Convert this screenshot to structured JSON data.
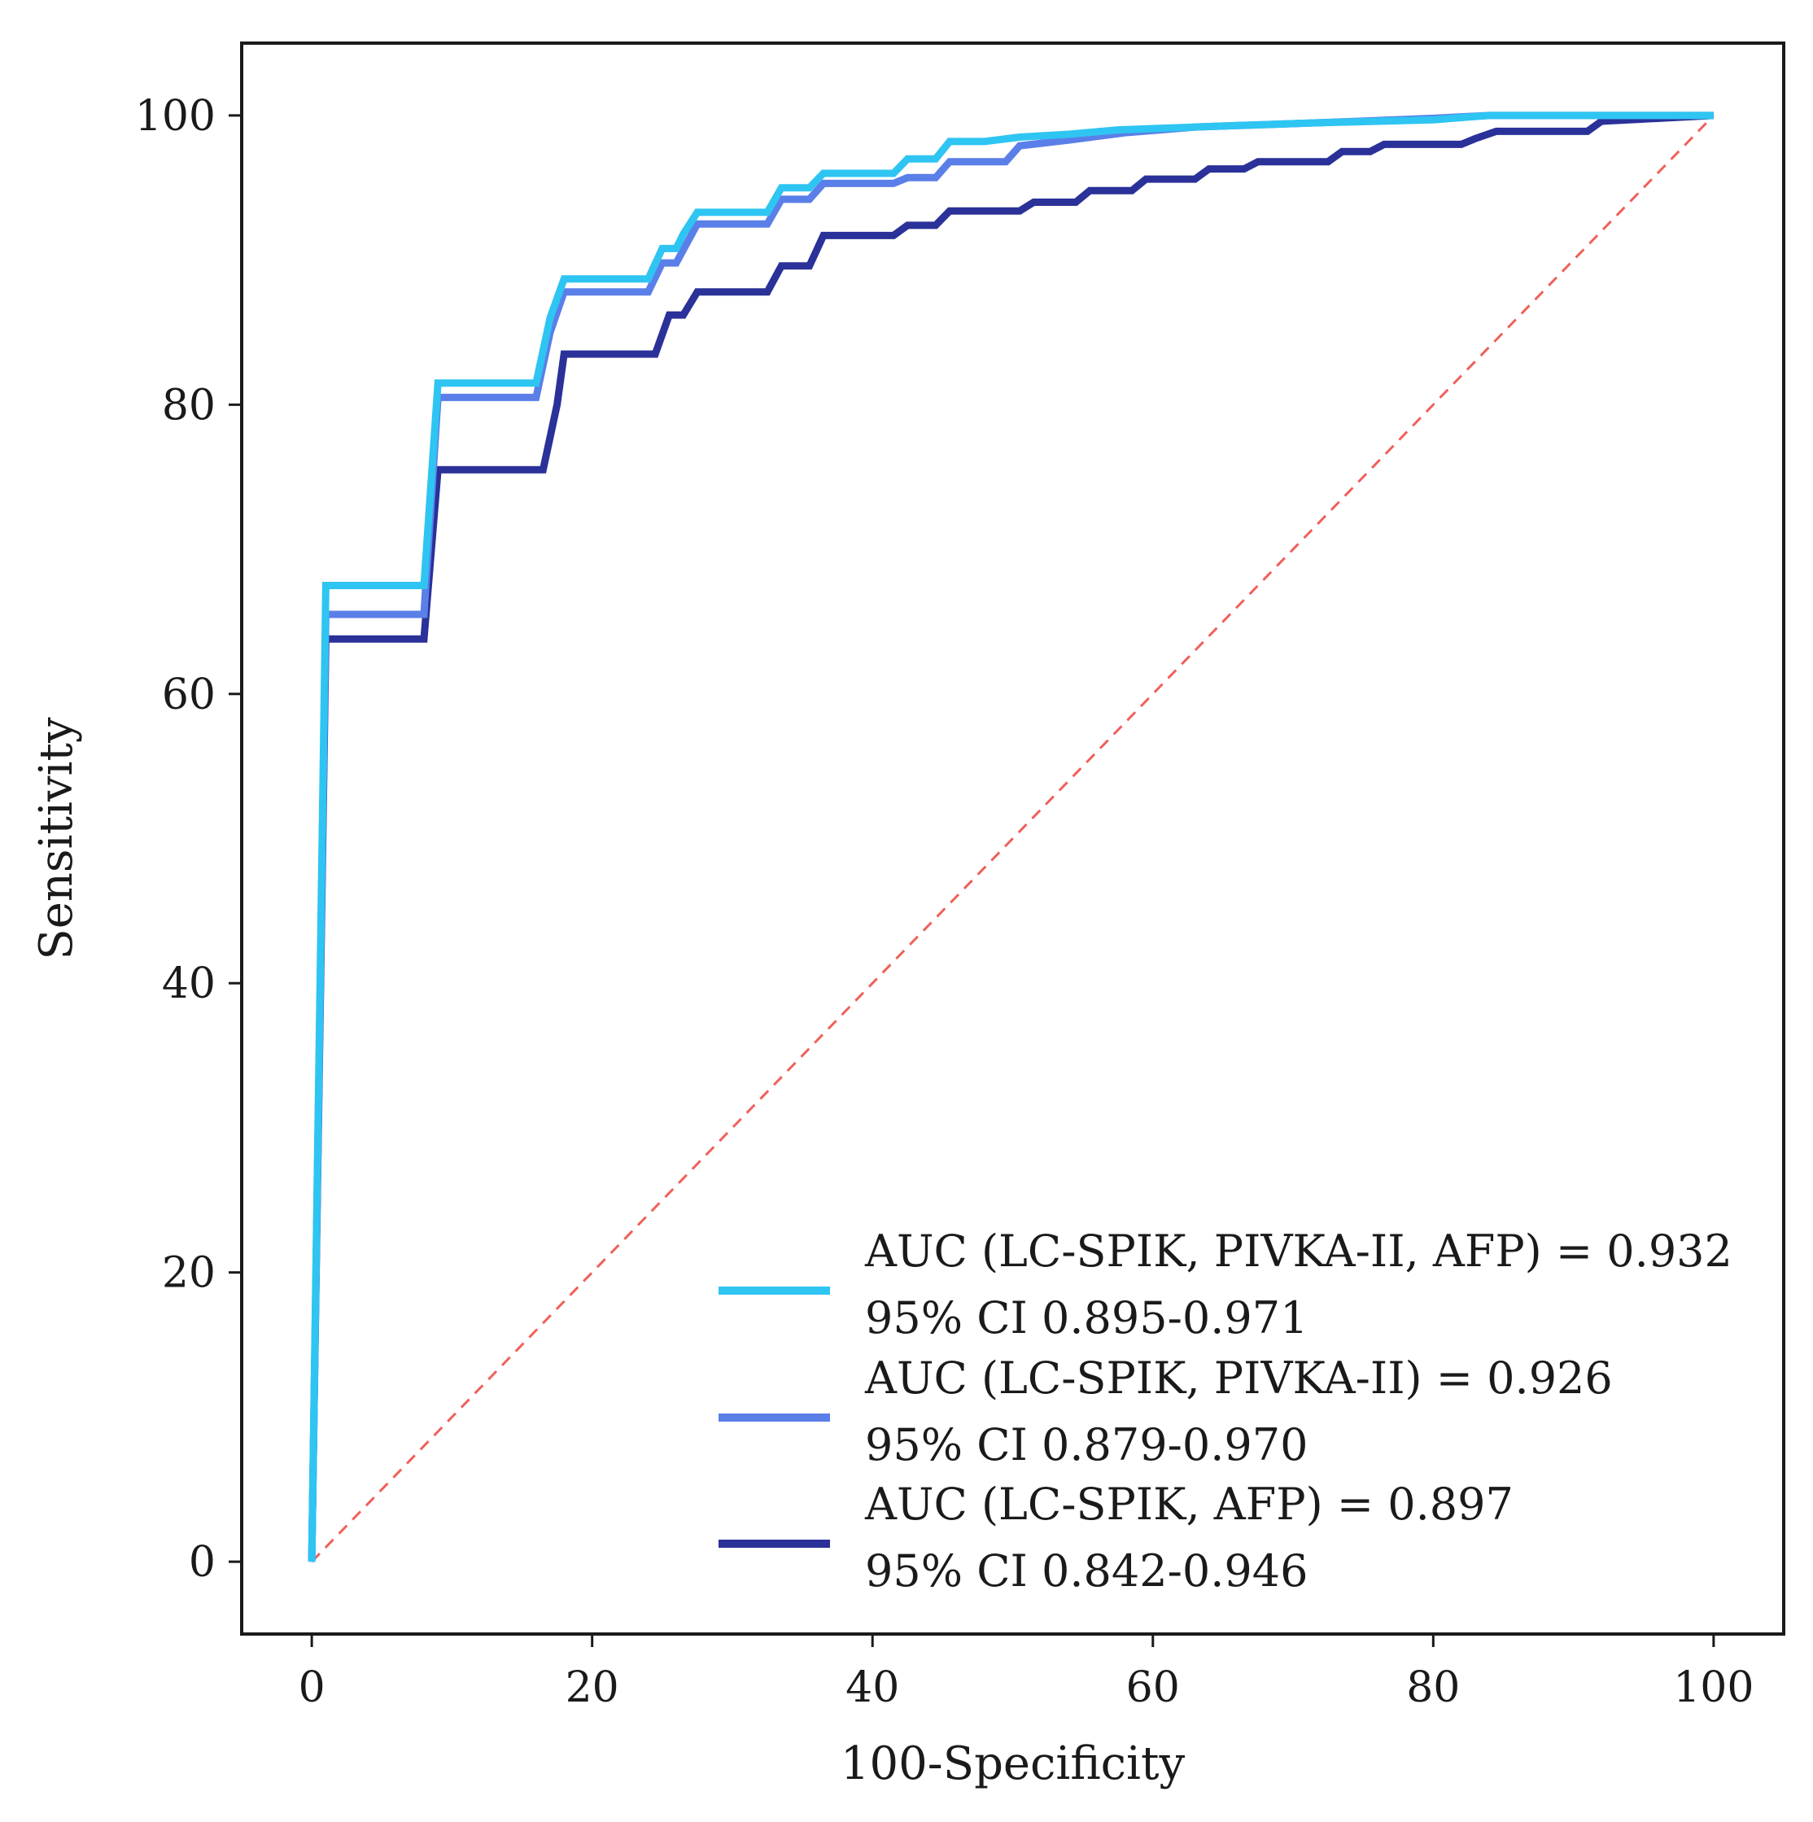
{
  "chart_data": {
    "type": "line",
    "title": "",
    "xlabel": "100-Specificity",
    "ylabel": "Sensitivity",
    "xlim": [
      -5,
      105
    ],
    "ylim": [
      -5,
      105
    ],
    "xticks": [
      0,
      20,
      40,
      60,
      80,
      100
    ],
    "yticks": [
      0,
      20,
      40,
      60,
      80,
      100
    ],
    "grid": false,
    "legend_position": "bottom-right",
    "reference_line": {
      "name": "chance",
      "color": "#f0605a",
      "style": "dashed",
      "x": [
        0,
        100
      ],
      "y": [
        0,
        100
      ]
    },
    "series": [
      {
        "name": "AUC (LC-SPIK, PIVKA-II, AFP) = 0.932",
        "ci": "95% CI 0.895-0.971",
        "color": "#2ec5f2",
        "x": [
          0,
          1,
          1,
          8,
          9,
          9,
          16,
          17,
          18,
          24,
          25,
          26,
          26.5,
          27.5,
          32.5,
          33.5,
          35.5,
          36.5,
          41.5,
          42.5,
          44.5,
          45.5,
          48,
          50.5,
          54,
          57.5,
          66,
          72,
          80,
          84,
          100
        ],
        "y": [
          0,
          67.5,
          67.5,
          67.5,
          81.5,
          81.5,
          81.5,
          86,
          88.7,
          88.7,
          90.8,
          90.8,
          91.8,
          93.3,
          93.3,
          95,
          95,
          96,
          96,
          97,
          97,
          98.2,
          98.2,
          98.5,
          98.7,
          99,
          99.3,
          99.5,
          99.7,
          100,
          100
        ]
      },
      {
        "name": "AUC (LC-SPIK, PIVKA-II) = 0.926",
        "ci": "95% CI 0.879-0.970",
        "color": "#5b7fe8",
        "x": [
          0,
          1,
          1,
          8,
          9,
          9,
          16,
          17,
          18,
          24,
          25,
          26,
          27.5,
          32.5,
          33.5,
          35.5,
          36.5,
          41.5,
          42.5,
          44.5,
          45.5,
          49.5,
          50.5,
          54,
          58,
          63,
          72,
          80,
          84,
          100
        ],
        "y": [
          0,
          65.5,
          65.5,
          65.5,
          80.5,
          80.5,
          80.5,
          85,
          87.8,
          87.8,
          89.8,
          89.8,
          92.5,
          92.5,
          94.2,
          94.2,
          95.3,
          95.3,
          95.7,
          95.7,
          96.8,
          96.8,
          97.9,
          98.3,
          98.8,
          99.2,
          99.5,
          99.8,
          100,
          100
        ]
      },
      {
        "name": "AUC (LC-SPIK, AFP) = 0.897",
        "ci": "95% CI 0.842-0.946",
        "color": "#2a3199",
        "x": [
          0,
          1,
          1,
          8,
          9,
          9,
          16.5,
          17.5,
          18,
          24.5,
          25.5,
          26.5,
          27.5,
          32.5,
          33.5,
          35.5,
          36.5,
          41.5,
          42.5,
          44.5,
          45.5,
          50.5,
          51.5,
          54.5,
          55.5,
          58.5,
          59.5,
          63,
          64,
          66.5,
          67.5,
          72.5,
          73.5,
          75.5,
          76.5,
          82,
          83,
          84.5,
          91,
          92,
          100
        ],
        "y": [
          0,
          63.8,
          63.8,
          63.8,
          75.5,
          75.5,
          75.5,
          80,
          83.5,
          83.5,
          86.2,
          86.2,
          87.8,
          87.8,
          89.6,
          89.6,
          91.7,
          91.7,
          92.4,
          92.4,
          93.4,
          93.4,
          94,
          94,
          94.8,
          94.8,
          95.6,
          95.6,
          96.3,
          96.3,
          96.8,
          96.8,
          97.5,
          97.5,
          98,
          98,
          98.4,
          98.9,
          98.9,
          99.6,
          100
        ]
      }
    ]
  }
}
